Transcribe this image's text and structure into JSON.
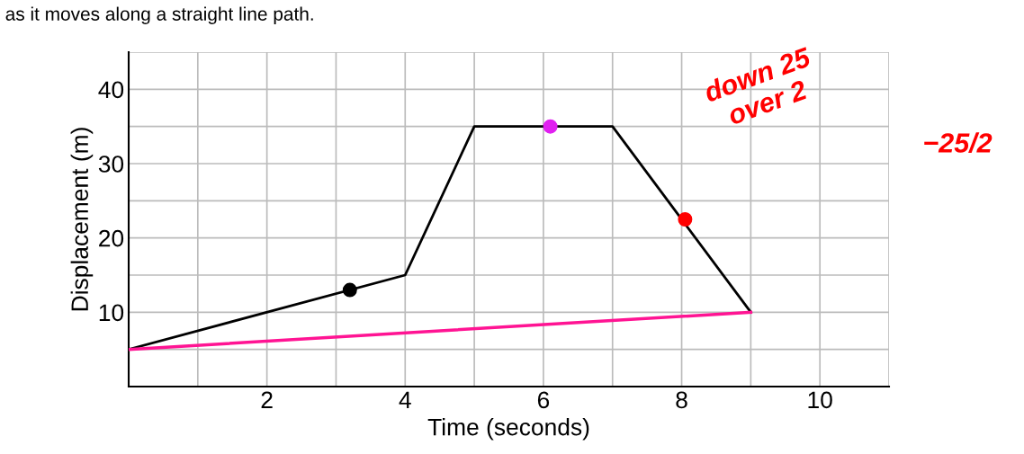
{
  "chart_data": {
    "type": "line",
    "xlabel": "Time (seconds)",
    "ylabel": "Displacement (m)",
    "annotations": [
      "as it moves along a straight line path.",
      "down 25\nover 2",
      "−25/2"
    ],
    "series": [
      {
        "color": "#000000",
        "x": [
          0,
          4,
          5,
          7,
          9
        ],
        "values": [
          5,
          15,
          35,
          35,
          10
        ]
      },
      {
        "color": "#ff1493",
        "x": [
          0,
          9
        ],
        "values": [
          5,
          10
        ]
      },
      {
        "type": "scatter",
        "color": "#000000",
        "x": [
          3.2
        ],
        "values": [
          13
        ]
      },
      {
        "type": "scatter",
        "color": "#e020f0",
        "x": [
          6.1
        ],
        "values": [
          35
        ]
      },
      {
        "type": "scatter",
        "color": "#ff0000",
        "x": [
          8.05
        ],
        "values": [
          22.5
        ]
      }
    ],
    "xlim": [
      0,
      11
    ],
    "ylim": [
      0,
      45
    ],
    "xticks": [
      {
        "value": 1,
        "label": null
      },
      2,
      {
        "value": 3,
        "label": null
      },
      4,
      {
        "value": 5,
        "label": null
      },
      6,
      {
        "value": 7,
        "label": null
      },
      8,
      {
        "value": 9,
        "label": null
      },
      10,
      {
        "value": 11,
        "label": null
      }
    ],
    "yticks": [
      {
        "value": 5,
        "label": null
      },
      10,
      {
        "value": 15,
        "label": null
      },
      20,
      {
        "value": 25,
        "label": null
      },
      30,
      {
        "value": 35,
        "label": null
      },
      40,
      {
        "value": 45,
        "label": null
      }
    ],
    "grid": true
  }
}
